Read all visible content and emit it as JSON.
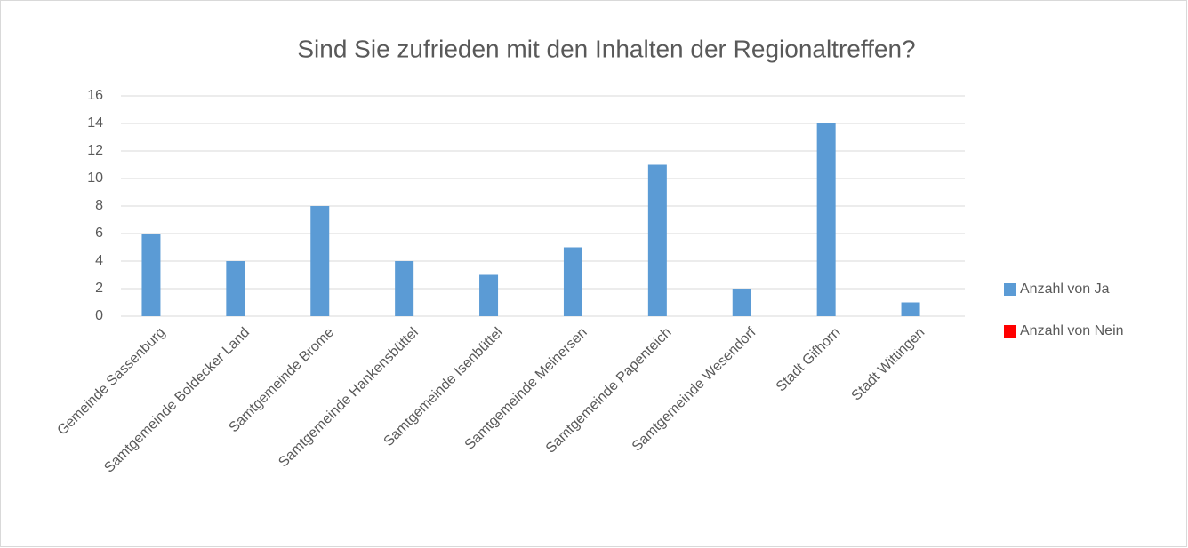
{
  "chart_data": {
    "type": "bar",
    "title": "Sind Sie zufrieden mit den Inhalten der Regionaltreffen?",
    "categories": [
      "Gemeinde Sassenburg",
      "Samtgemeinde Boldecker Land",
      "Samtgemeinde Brome",
      "Samtgemeinde Hankensbüttel",
      "Samtgemeinde Isenbüttel",
      "Samtgemeinde Meinersen",
      "Samtgemeinde Papenteich",
      "Samtgemeinde Wesendorf",
      "Stadt Gifhorn",
      "Stadt Wittingen"
    ],
    "series": [
      {
        "name": "Anzahl von Ja",
        "color": "#5b9bd5",
        "values": [
          6,
          4,
          8,
          4,
          3,
          5,
          11,
          2,
          14,
          1
        ]
      },
      {
        "name": "Anzahl von Nein",
        "color": "#ff0000",
        "values": [
          0,
          0,
          0,
          0,
          0,
          0,
          0,
          0,
          0,
          0
        ]
      }
    ],
    "ylim": [
      0,
      16
    ],
    "yticks": [
      0,
      2,
      4,
      6,
      8,
      10,
      12,
      14,
      16
    ],
    "grid": true,
    "legend": "right"
  }
}
